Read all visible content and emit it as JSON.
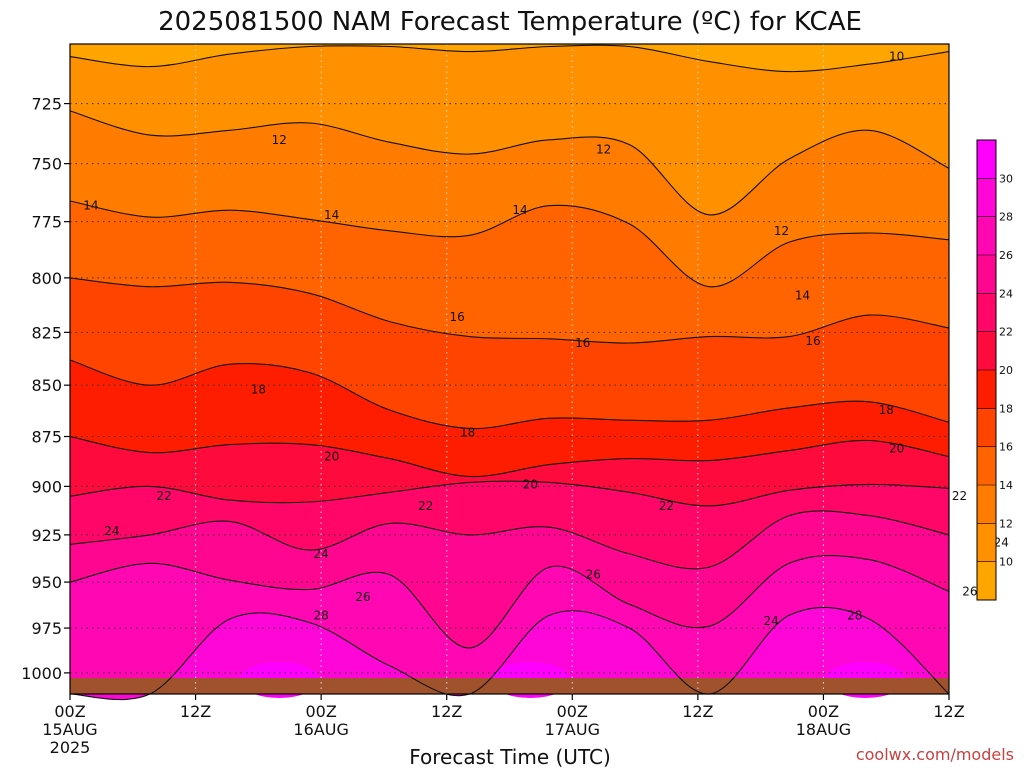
{
  "chart_data": {
    "type": "heatmap",
    "title": "2025081500 NAM Forecast Temperature (ºC) for KCAE",
    "xlabel": "Forecast Time (UTC)",
    "ylabel": "",
    "credit": "coolwx.com/models",
    "x_ticks": [
      {
        "hour": 0,
        "lines": [
          "00Z",
          "15AUG",
          "2025"
        ]
      },
      {
        "hour": 12,
        "lines": [
          "12Z"
        ]
      },
      {
        "hour": 24,
        "lines": [
          "00Z",
          "16AUG"
        ]
      },
      {
        "hour": 36,
        "lines": [
          "12Z"
        ]
      },
      {
        "hour": 48,
        "lines": [
          "00Z",
          "17AUG"
        ]
      },
      {
        "hour": 60,
        "lines": [
          "12Z"
        ]
      },
      {
        "hour": 72,
        "lines": [
          "00Z",
          "18AUG"
        ]
      },
      {
        "hour": 84,
        "lines": [
          "12Z"
        ]
      }
    ],
    "xlim_hours": [
      0,
      84
    ],
    "y_ticks": [
      "725",
      "750",
      "775",
      "800",
      "825",
      "850",
      "875",
      "900",
      "925",
      "950",
      "975",
      "1000"
    ],
    "ylim_hpa": [
      701,
      1012
    ],
    "y_scale": "log",
    "grid": true,
    "contour_levels": [
      10,
      12,
      14,
      16,
      18,
      20,
      22,
      24,
      26,
      28,
      30
    ],
    "colorbar": {
      "levels": [
        10,
        12,
        14,
        16,
        18,
        20,
        22,
        24,
        26,
        28,
        30
      ],
      "colors": [
        "#ffa500",
        "#ff9100",
        "#ff7c00",
        "#ff6400",
        "#ff4400",
        "#ff1d00",
        "#ff0a3c",
        "#ff0668",
        "#ff0690",
        "#ff08b4",
        "#ff06d8",
        "#ff00ff"
      ]
    },
    "ground_color": "#a0522d",
    "contours": [
      {
        "level": 10,
        "hpa": [
          706,
          710,
          705,
          702,
          702,
          704,
          702,
          702,
          708,
          712,
          709,
          704
        ]
      },
      {
        "level": 12,
        "hpa": [
          728,
          738,
          736,
          733,
          741,
          746,
          740,
          742,
          772,
          748,
          736,
          752
        ]
      },
      {
        "level": 14,
        "hpa": [
          766,
          773,
          770,
          774,
          779,
          781,
          768,
          776,
          804,
          784,
          780,
          783
        ]
      },
      {
        "level": 16,
        "hpa": [
          800,
          804,
          802,
          807,
          820,
          827,
          828,
          830,
          827,
          827,
          817,
          823
        ]
      },
      {
        "level": 18,
        "hpa": [
          838,
          850,
          840,
          844,
          862,
          871,
          866,
          867,
          867,
          861,
          858,
          868
        ]
      },
      {
        "level": 20,
        "hpa": [
          875,
          883,
          879,
          879,
          886,
          895,
          889,
          886,
          887,
          882,
          877,
          885
        ]
      },
      {
        "level": 22,
        "hpa": [
          905,
          900,
          907,
          908,
          903,
          898,
          898,
          903,
          910,
          902,
          899,
          901
        ]
      },
      {
        "level": 24,
        "hpa": [
          930,
          925,
          918,
          933,
          919,
          925,
          921,
          935,
          942,
          915,
          915,
          925
        ]
      },
      {
        "level": 26,
        "hpa": [
          950,
          940,
          949,
          954,
          946,
          986,
          942,
          962,
          974,
          940,
          938,
          955
        ]
      },
      {
        "level": 28,
        "hpa": [
          1012,
          1012,
          970,
          972,
          996,
          1012,
          968,
          975,
          1012,
          968,
          970,
          1012
        ]
      }
    ],
    "contour_label_positions": [
      {
        "level": 10,
        "hour": 79,
        "hpa": 706
      },
      {
        "level": 12,
        "hour": 20,
        "hpa": 740
      },
      {
        "level": 12,
        "hour": 51,
        "hpa": 744
      },
      {
        "level": 12,
        "hour": 68,
        "hpa": 779
      },
      {
        "level": 14,
        "hour": 2,
        "hpa": 768
      },
      {
        "level": 14,
        "hour": 25,
        "hpa": 772
      },
      {
        "level": 14,
        "hour": 43,
        "hpa": 770
      },
      {
        "level": 14,
        "hour": 70,
        "hpa": 808
      },
      {
        "level": 16,
        "hour": 37,
        "hpa": 818
      },
      {
        "level": 16,
        "hour": 49,
        "hpa": 830
      },
      {
        "level": 16,
        "hour": 71,
        "hpa": 829
      },
      {
        "level": 18,
        "hour": 18,
        "hpa": 852
      },
      {
        "level": 18,
        "hour": 38,
        "hpa": 873
      },
      {
        "level": 18,
        "hour": 78,
        "hpa": 862
      },
      {
        "level": 20,
        "hour": 25,
        "hpa": 885
      },
      {
        "level": 20,
        "hour": 44,
        "hpa": 899
      },
      {
        "level": 20,
        "hour": 79,
        "hpa": 881
      },
      {
        "level": 22,
        "hour": 9,
        "hpa": 905
      },
      {
        "level": 22,
        "hour": 34,
        "hpa": 910
      },
      {
        "level": 22,
        "hour": 57,
        "hpa": 910
      },
      {
        "level": 22,
        "hour": 85,
        "hpa": 905
      },
      {
        "level": 24,
        "hour": 4,
        "hpa": 923
      },
      {
        "level": 24,
        "hour": 24,
        "hpa": 935
      },
      {
        "level": 24,
        "hour": 67,
        "hpa": 971
      },
      {
        "level": 24,
        "hour": 89,
        "hpa": 929
      },
      {
        "level": 26,
        "hour": 28,
        "hpa": 958
      },
      {
        "level": 26,
        "hour": 50,
        "hpa": 946
      },
      {
        "level": 26,
        "hour": 86,
        "hpa": 955
      },
      {
        "level": 28,
        "hour": 24,
        "hpa": 968
      },
      {
        "level": 28,
        "hour": 75,
        "hpa": 968
      }
    ]
  }
}
